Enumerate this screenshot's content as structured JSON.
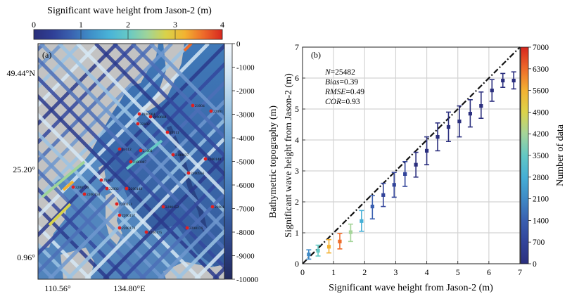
{
  "chart_data": [
    {
      "type": "map",
      "panel_label": "(a)",
      "title": "Significant wave height from Jason-2 (m)",
      "top_colorbar": {
        "range": [
          0,
          4
        ],
        "ticks": [
          "0",
          "1",
          "2",
          "3",
          "4"
        ],
        "colors": [
          "#2a2f7a",
          "#2f3f96",
          "#3a62b0",
          "#3f8fc8",
          "#49b3d8",
          "#66c9c6",
          "#9ed49a",
          "#d8d24a",
          "#f2b331",
          "#ee6a2a",
          "#d7271f"
        ]
      },
      "side_colorbar": {
        "label": "Bathymetric topography (m)",
        "range": [
          -10000,
          0
        ],
        "ticks": [
          "0",
          "-1000",
          "-2000",
          "-3000",
          "-4000",
          "-5000",
          "-6000",
          "-7000",
          "-8000",
          "-9000",
          "-10000"
        ],
        "colors": [
          "#f5f9fd",
          "#d4e6f4",
          "#a8cde8",
          "#7cb1db",
          "#5a95cc",
          "#4377b6",
          "#35599c",
          "#2b3f80",
          "#222a5e"
        ]
      },
      "lat_ticks": [
        "49.44°N",
        "25.20°",
        "0.96°"
      ],
      "lon_ticks": [
        "110.56°",
        "134.80°E"
      ],
      "stations": [
        "2100664",
        "2100668",
        "21004",
        "22001",
        "22102",
        "21011",
        "21012",
        "21001",
        "2100427",
        "2200148",
        "2100887",
        "2100956",
        "2200726",
        "21002",
        "22002",
        "2200149",
        "2200150",
        "2200151",
        "2200152",
        "2200155",
        "2200157",
        "2200174",
        "2200175",
        "2200176"
      ]
    },
    {
      "type": "scatter",
      "panel_label": "(b)",
      "xlabel": "Significant wave height from Jason-2 (m)",
      "ylabel": "Significant wave height from Jason-2 (m)",
      "xlim": [
        0,
        7
      ],
      "ylim": [
        0,
        7
      ],
      "x_ticks": [
        0,
        1,
        2,
        3,
        4,
        5,
        6,
        7
      ],
      "y_ticks": [
        0,
        1,
        2,
        3,
        4,
        5,
        6,
        7
      ],
      "grid": true,
      "stats": [
        {
          "key": "N",
          "value": "25482"
        },
        {
          "key": "Bias",
          "value": "0.39"
        },
        {
          "key": "RMSE",
          "value": "0.49"
        },
        {
          "key": "COR",
          "value": "0.93"
        }
      ],
      "colorbar": {
        "label": "Number of data",
        "range": [
          0,
          7000
        ],
        "ticks": [
          0,
          700,
          1400,
          2100,
          2800,
          3500,
          4200,
          4900,
          5600,
          6300,
          7000
        ],
        "colors": [
          "#2b2f7e",
          "#32449a",
          "#3a5fb0",
          "#3f8ac6",
          "#45afd6",
          "#63c8c4",
          "#a5d59a",
          "#dcd34a",
          "#f3b232",
          "#ee6b2a",
          "#d7271f"
        ]
      },
      "points": [
        {
          "x": 0.2,
          "y": 0.3,
          "lo": 0.15,
          "hi": 0.45,
          "count": 1800
        },
        {
          "x": 0.5,
          "y": 0.42,
          "lo": 0.25,
          "hi": 0.6,
          "count": 3400
        },
        {
          "x": 0.85,
          "y": 0.55,
          "lo": 0.35,
          "hi": 0.78,
          "count": 5600
        },
        {
          "x": 1.2,
          "y": 0.72,
          "lo": 0.48,
          "hi": 0.98,
          "count": 6300
        },
        {
          "x": 1.55,
          "y": 1.02,
          "lo": 0.72,
          "hi": 1.28,
          "count": 4300
        },
        {
          "x": 1.9,
          "y": 1.38,
          "lo": 1.05,
          "hi": 1.72,
          "count": 2800
        },
        {
          "x": 2.25,
          "y": 1.85,
          "lo": 1.45,
          "hi": 2.2,
          "count": 1500
        },
        {
          "x": 2.6,
          "y": 2.22,
          "lo": 1.85,
          "hi": 2.6,
          "count": 1000
        },
        {
          "x": 2.95,
          "y": 2.55,
          "lo": 2.15,
          "hi": 2.95,
          "count": 700
        },
        {
          "x": 3.3,
          "y": 2.9,
          "lo": 2.5,
          "hi": 3.3,
          "count": 450
        },
        {
          "x": 3.65,
          "y": 3.2,
          "lo": 2.8,
          "hi": 3.6,
          "count": 300
        },
        {
          "x": 4.0,
          "y": 3.65,
          "lo": 3.2,
          "hi": 4.1,
          "count": 200
        },
        {
          "x": 4.35,
          "y": 4.1,
          "lo": 3.65,
          "hi": 4.55,
          "count": 150
        },
        {
          "x": 4.7,
          "y": 4.42,
          "lo": 3.95,
          "hi": 4.9,
          "count": 100
        },
        {
          "x": 5.05,
          "y": 4.6,
          "lo": 4.1,
          "hi": 5.1,
          "count": 80
        },
        {
          "x": 5.4,
          "y": 4.85,
          "lo": 4.42,
          "hi": 5.3,
          "count": 60
        },
        {
          "x": 5.75,
          "y": 5.1,
          "lo": 4.7,
          "hi": 5.55,
          "count": 40
        },
        {
          "x": 6.1,
          "y": 5.6,
          "lo": 5.25,
          "hi": 5.95,
          "count": 30
        },
        {
          "x": 6.45,
          "y": 5.92,
          "lo": 5.7,
          "hi": 6.15,
          "count": 20
        },
        {
          "x": 6.8,
          "y": 5.92,
          "lo": 5.65,
          "hi": 6.2,
          "count": 15
        }
      ]
    }
  ]
}
